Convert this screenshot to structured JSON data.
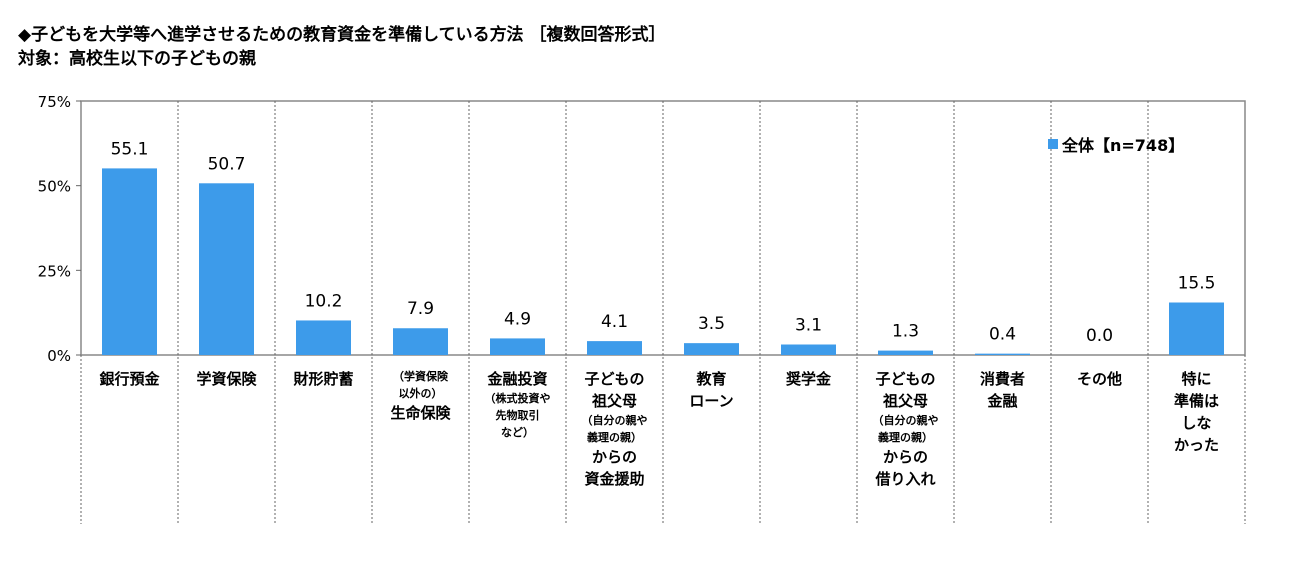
{
  "title_line1": "◆子どもを大学等へ進学させるための教育資金を準備している方法 ［複数回答形式］",
  "title_line2": "対象：高校生以下の子どもの親",
  "legend_label": "全体【n=748】",
  "colors": {
    "bar": "#3D9BEA",
    "grid": "#888888",
    "axis": "#666666"
  },
  "chart_data": {
    "type": "bar",
    "title": "◆子どもを大学等へ進学させるための教育資金を準備している方法 ［複数回答形式］",
    "subtitle": "対象：高校生以下の子どもの親",
    "ylim": [
      0,
      75
    ],
    "yticks": [
      0,
      25,
      50,
      75
    ],
    "ytick_labels": [
      "0%",
      "25%",
      "50%",
      "75%"
    ],
    "legend_position": "top-right",
    "categories": [
      [
        {
          "t": "銀行預金",
          "s": false
        }
      ],
      [
        {
          "t": "学資保険",
          "s": false
        }
      ],
      [
        {
          "t": "財形貯蓄",
          "s": false
        }
      ],
      [
        {
          "t": "（学資保険",
          "s": true
        },
        {
          "t": "以外の）",
          "s": true
        },
        {
          "t": "生命保険",
          "s": false
        }
      ],
      [
        {
          "t": "金融投資",
          "s": false
        },
        {
          "t": "（株式投資や",
          "s": true
        },
        {
          "t": "先物取引",
          "s": true
        },
        {
          "t": "など）",
          "s": true
        }
      ],
      [
        {
          "t": "子どもの",
          "s": false
        },
        {
          "t": "祖父母",
          "s": false
        },
        {
          "t": "（自分の親や",
          "s": true
        },
        {
          "t": "義理の親）",
          "s": true
        },
        {
          "t": "からの",
          "s": false
        },
        {
          "t": "資金援助",
          "s": false
        }
      ],
      [
        {
          "t": "教育",
          "s": false
        },
        {
          "t": "ローン",
          "s": false
        }
      ],
      [
        {
          "t": "奨学金",
          "s": false
        }
      ],
      [
        {
          "t": "子どもの",
          "s": false
        },
        {
          "t": "祖父母",
          "s": false
        },
        {
          "t": "（自分の親や",
          "s": true
        },
        {
          "t": "義理の親）",
          "s": true
        },
        {
          "t": "からの",
          "s": false
        },
        {
          "t": "借り入れ",
          "s": false
        }
      ],
      [
        {
          "t": "消費者",
          "s": false
        },
        {
          "t": "金融",
          "s": false
        }
      ],
      [
        {
          "t": "その他",
          "s": false
        }
      ],
      [
        {
          "t": "特に",
          "s": false
        },
        {
          "t": "準備は",
          "s": false
        },
        {
          "t": "しな",
          "s": false
        },
        {
          "t": "かった",
          "s": false
        }
      ]
    ],
    "series": [
      {
        "name": "全体【n=748】",
        "values": [
          55.1,
          50.7,
          10.2,
          7.9,
          4.9,
          4.1,
          3.5,
          3.1,
          1.3,
          0.4,
          0.0,
          15.5
        ],
        "labels": [
          "55.1",
          "50.7",
          "10.2",
          "7.9",
          "4.9",
          "4.1",
          "3.5",
          "3.1",
          "1.3",
          "0.4",
          "0.0",
          "15.5"
        ]
      }
    ]
  }
}
